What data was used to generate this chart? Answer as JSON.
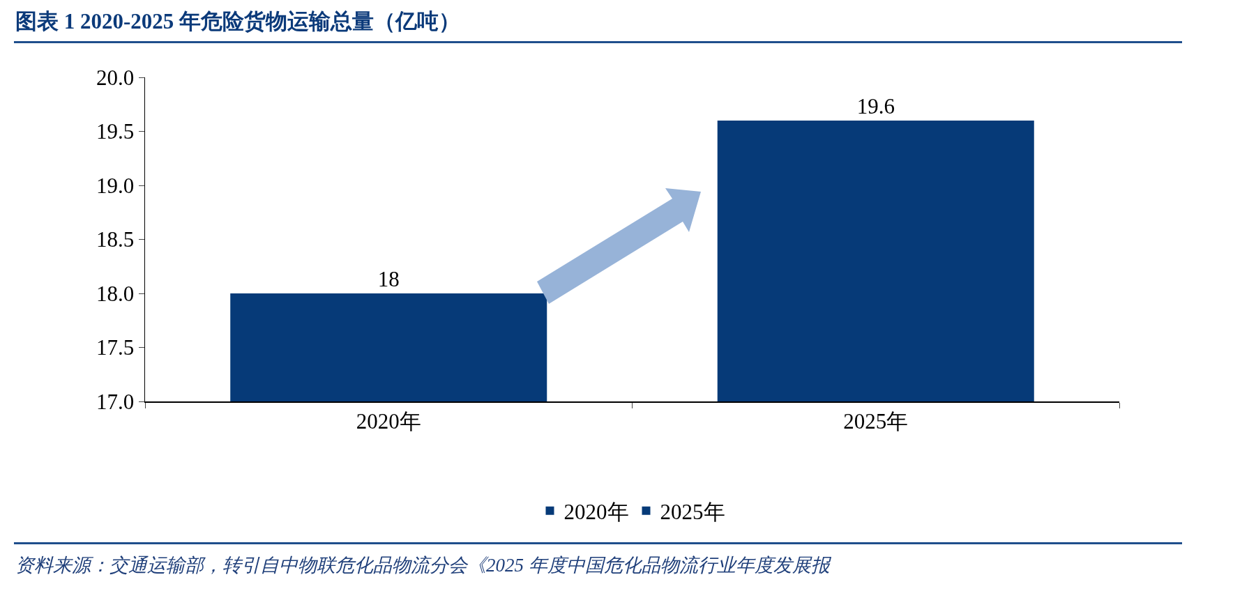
{
  "chart_data": {
    "type": "bar",
    "title": "图表 1   2020-2025 年危险货物运输总量（亿吨）",
    "categories": [
      "2020年",
      "2025年"
    ],
    "series": [
      {
        "name": "2020年",
        "color": "#063a78",
        "values": [
          18,
          null
        ]
      },
      {
        "name": "2025年",
        "color": "#063a78",
        "values": [
          null,
          19.6
        ]
      }
    ],
    "ylim": [
      17,
      20
    ],
    "yticks": [
      {
        "value": 17,
        "label": "17.0"
      },
      {
        "value": 17.5,
        "label": "17.5"
      },
      {
        "value": 18,
        "label": "18.0"
      },
      {
        "value": 18.5,
        "label": "18.5"
      },
      {
        "value": 19,
        "label": "19.0"
      },
      {
        "value": 19.5,
        "label": "19.5"
      },
      {
        "value": 20,
        "label": "20.0"
      }
    ],
    "data_labels": true,
    "grid": false,
    "legend": "bottom",
    "annotations": [
      "资料来源：交通运输部，转引自中物联危化品物流分会《2025 年度中国危化品物流行业年度发展报"
    ]
  }
}
